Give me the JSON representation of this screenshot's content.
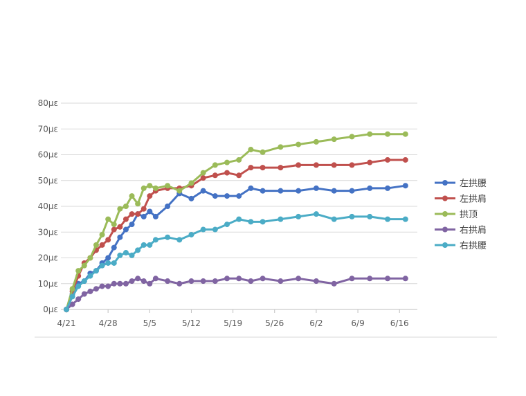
{
  "chart_data": {
    "type": "line",
    "title": "",
    "xlabel": "",
    "ylabel": "",
    "ylim": [
      0,
      80
    ],
    "yticks": [
      0,
      10,
      20,
      30,
      40,
      50,
      60,
      70,
      80
    ],
    "yunit": "με",
    "xlim": [
      0,
      59
    ],
    "xticks": [
      {
        "day": 0,
        "label": "4/21"
      },
      {
        "day": 7,
        "label": "4/28"
      },
      {
        "day": 14,
        "label": "5/5"
      },
      {
        "day": 21,
        "label": "5/12"
      },
      {
        "day": 28,
        "label": "5/19"
      },
      {
        "day": 35,
        "label": "5/26"
      },
      {
        "day": 42,
        "label": "6/2"
      },
      {
        "day": 49,
        "label": "6/9"
      },
      {
        "day": 56,
        "label": "6/16"
      }
    ],
    "x": [
      0,
      1,
      2,
      3,
      4,
      5,
      6,
      7,
      8,
      9,
      10,
      11,
      12,
      13,
      14,
      15,
      17,
      19,
      21,
      23,
      25,
      27,
      29,
      31,
      33,
      36,
      39,
      42,
      45,
      48,
      51,
      54,
      57
    ],
    "legend_position": "right",
    "series": [
      {
        "name": "左拱腰",
        "color": "#4472C4",
        "values": [
          0,
          6,
          10,
          11,
          14,
          15,
          18,
          20,
          24,
          28,
          31,
          33,
          37,
          36,
          38,
          36,
          40,
          45,
          43,
          46,
          44,
          44,
          44,
          47,
          46,
          46,
          46,
          47,
          46,
          46,
          47,
          47,
          48
        ]
      },
      {
        "name": "左拱肩",
        "color": "#C0504D",
        "values": [
          0,
          7,
          13,
          18,
          20,
          23,
          25,
          27,
          31,
          32,
          35,
          37,
          37,
          39,
          44,
          46,
          47,
          47,
          48,
          51,
          52,
          53,
          52,
          55,
          55,
          55,
          56,
          56,
          56,
          56,
          57,
          58,
          58
        ]
      },
      {
        "name": "拱顶",
        "color": "#9BBB59",
        "values": [
          0,
          8,
          15,
          17,
          20,
          25,
          29,
          35,
          33,
          39,
          40,
          44,
          41,
          47,
          48,
          47,
          48,
          46,
          49,
          53,
          56,
          57,
          58,
          62,
          61,
          63,
          64,
          65,
          66,
          67,
          68,
          68,
          68
        ]
      },
      {
        "name": "右拱肩",
        "color": "#8064A2",
        "values": [
          0,
          2,
          4,
          6,
          7,
          8,
          9,
          9,
          10,
          10,
          10,
          11,
          12,
          11,
          10,
          12,
          11,
          10,
          11,
          11,
          11,
          12,
          12,
          11,
          12,
          11,
          12,
          11,
          10,
          12,
          12,
          12,
          12
        ]
      },
      {
        "name": "右拱腰",
        "color": "#4BACC6",
        "values": [
          0,
          5,
          9,
          11,
          13,
          15,
          17,
          18,
          18,
          21,
          22,
          21,
          23,
          25,
          25,
          27,
          28,
          27,
          29,
          31,
          31,
          33,
          35,
          34,
          34,
          35,
          36,
          37,
          35,
          36,
          36,
          35,
          35
        ]
      }
    ]
  }
}
